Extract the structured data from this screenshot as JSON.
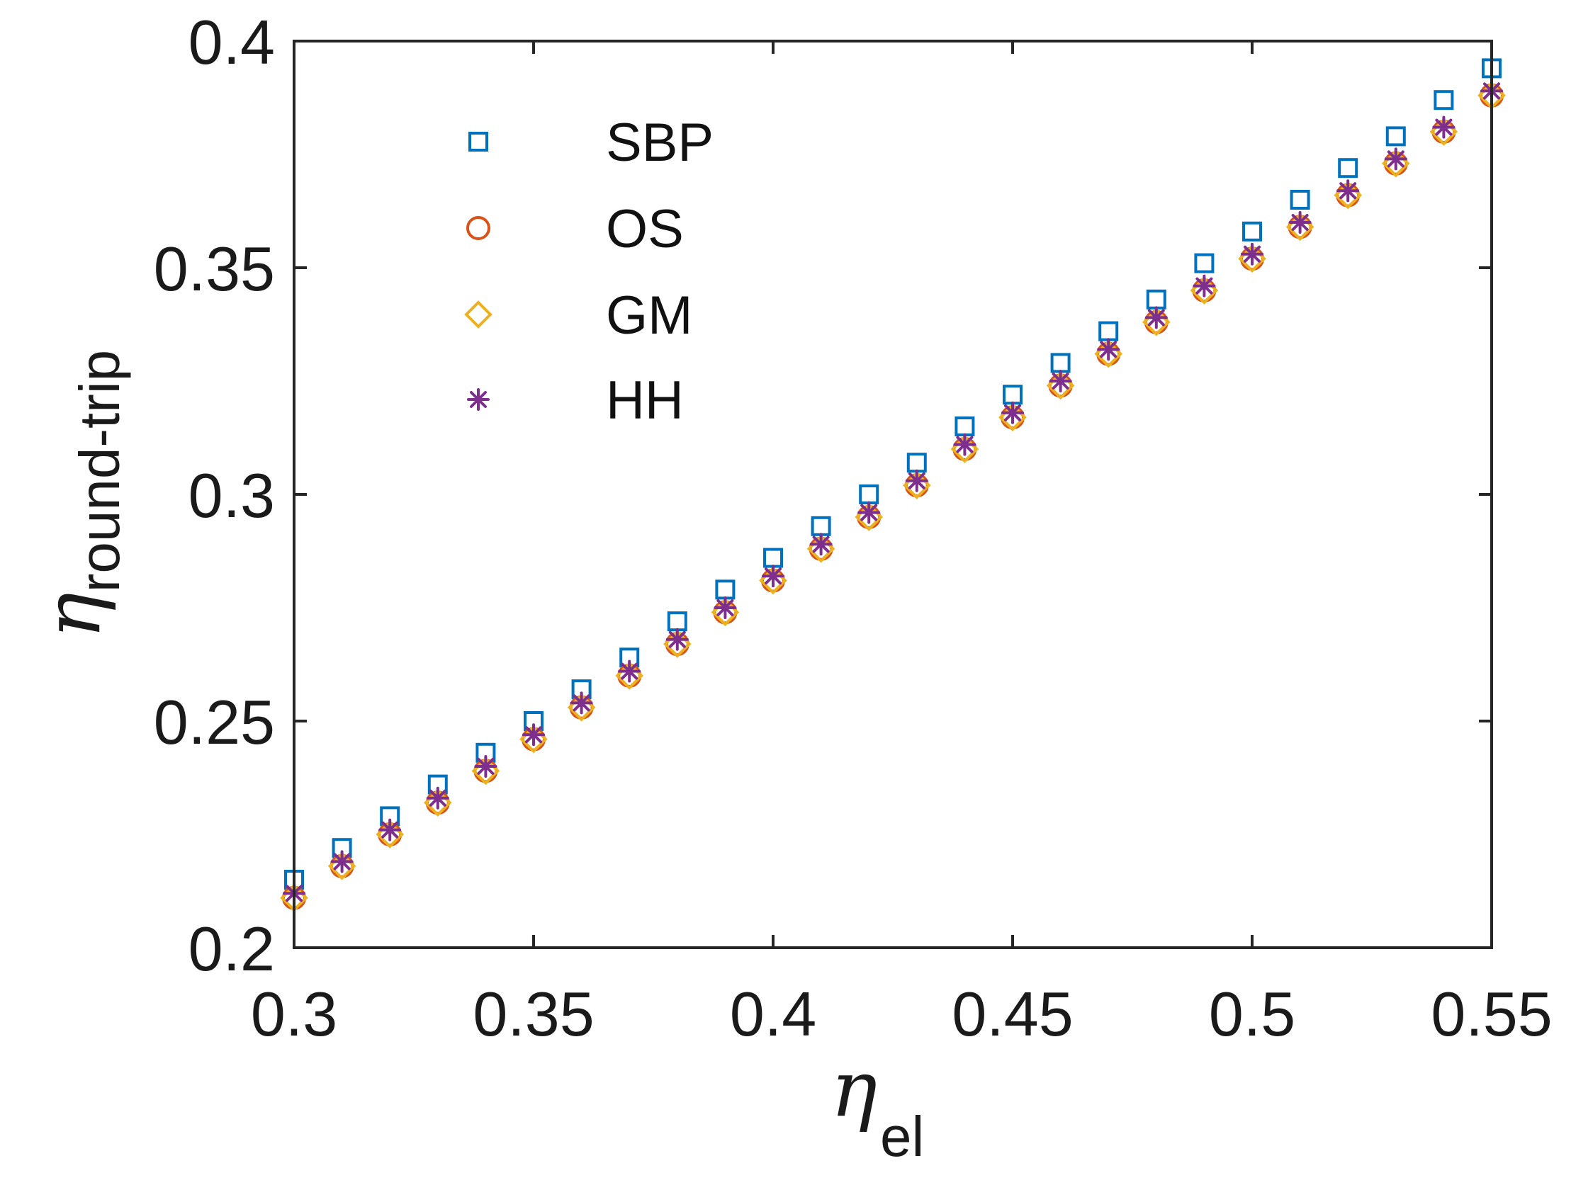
{
  "chart_data": {
    "type": "scatter",
    "title": "",
    "xlabel": {
      "symbol": "η",
      "subscript": "el"
    },
    "ylabel": {
      "symbol": "η",
      "subscript": "round-trip"
    },
    "xlim": [
      0.3,
      0.55
    ],
    "ylim": [
      0.2,
      0.4
    ],
    "xticks": [
      0.3,
      0.35,
      0.4,
      0.45,
      0.5,
      0.55
    ],
    "xtick_labels": [
      "0.3",
      "0.35",
      "0.4",
      "0.45",
      "0.5",
      "0.55"
    ],
    "yticks": [
      0.2,
      0.25,
      0.3,
      0.35,
      0.4
    ],
    "ytick_labels": [
      "0.2",
      "0.25",
      "0.3",
      "0.35",
      "0.4"
    ],
    "grid": false,
    "legend_position": "top-left",
    "x": [
      0.3,
      0.31,
      0.32,
      0.33,
      0.34,
      0.35,
      0.36,
      0.37,
      0.38,
      0.39,
      0.4,
      0.41,
      0.42,
      0.43,
      0.44,
      0.45,
      0.46,
      0.47,
      0.48,
      0.49,
      0.5,
      0.51,
      0.52,
      0.53,
      0.54,
      0.55
    ],
    "series": [
      {
        "name": "SBP",
        "marker": "square",
        "color": "#0072BD",
        "values": [
          0.215,
          0.222,
          0.229,
          0.236,
          0.243,
          0.25,
          0.257,
          0.264,
          0.272,
          0.279,
          0.286,
          0.293,
          0.3,
          0.307,
          0.315,
          0.322,
          0.329,
          0.336,
          0.343,
          0.351,
          0.358,
          0.365,
          0.372,
          0.379,
          0.387,
          0.394
        ]
      },
      {
        "name": "OS",
        "marker": "circle",
        "color": "#D95319",
        "values": [
          0.211,
          0.218,
          0.225,
          0.232,
          0.239,
          0.246,
          0.253,
          0.26,
          0.267,
          0.274,
          0.281,
          0.288,
          0.295,
          0.302,
          0.31,
          0.317,
          0.324,
          0.331,
          0.338,
          0.345,
          0.352,
          0.359,
          0.366,
          0.373,
          0.38,
          0.388
        ]
      },
      {
        "name": "GM",
        "marker": "diamond",
        "color": "#EDB120",
        "values": [
          0.211,
          0.218,
          0.225,
          0.232,
          0.239,
          0.246,
          0.253,
          0.26,
          0.267,
          0.274,
          0.281,
          0.288,
          0.295,
          0.302,
          0.31,
          0.317,
          0.324,
          0.331,
          0.338,
          0.345,
          0.352,
          0.359,
          0.366,
          0.373,
          0.38,
          0.388
        ]
      },
      {
        "name": "HH",
        "marker": "asterisk",
        "color": "#7E2F8E",
        "values": [
          0.212,
          0.219,
          0.226,
          0.233,
          0.24,
          0.247,
          0.254,
          0.261,
          0.268,
          0.275,
          0.282,
          0.289,
          0.296,
          0.303,
          0.311,
          0.318,
          0.325,
          0.332,
          0.339,
          0.346,
          0.353,
          0.36,
          0.367,
          0.374,
          0.381,
          0.389
        ]
      }
    ]
  }
}
